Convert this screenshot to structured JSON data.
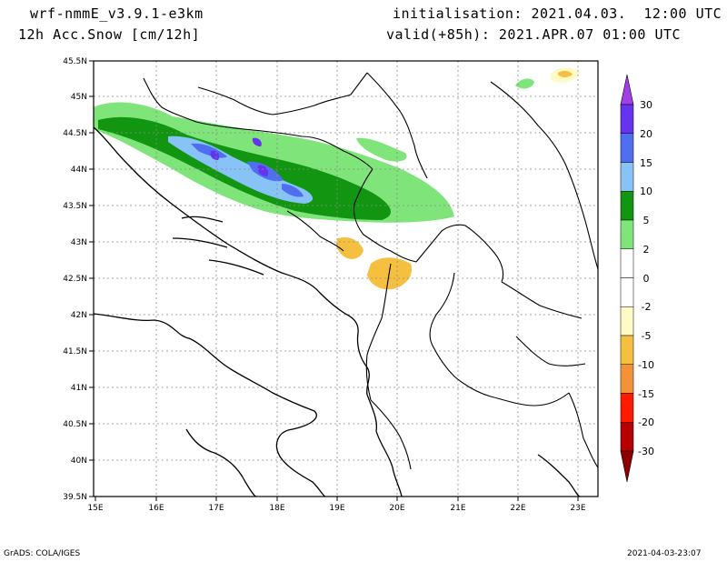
{
  "header": {
    "model": "wrf-nmmE_v3.9.1-e3km",
    "variable": "12h Acc.Snow [cm/12h]",
    "initialisation": "initialisation: 2021.04.03.  12:00 UTC",
    "valid": "valid(+85h): 2021.APR.07 01:00 UTC"
  },
  "footer": {
    "credit": "GrADS: COLA/IGES",
    "timestamp": "2021-04-03-23:07"
  },
  "map": {
    "lat_labels": [
      "45.5N",
      "45N",
      "44.5N",
      "44N",
      "43.5N",
      "43N",
      "42.5N",
      "42N",
      "41.5N",
      "41N",
      "40.5N",
      "40N",
      "39.5N"
    ],
    "lon_labels": [
      "15E",
      "16E",
      "17E",
      "18E",
      "19E",
      "20E",
      "21E",
      "22E",
      "23E"
    ]
  },
  "colorbar": {
    "labels": [
      "30",
      "20",
      "15",
      "10",
      "5",
      "2",
      "0",
      "-2",
      "-5",
      "-10",
      "-15",
      "-20",
      "-30"
    ],
    "colors": [
      "#6633ee",
      "#4f6ff0",
      "#87c3f6",
      "#129612",
      "#7fe57a",
      "#ffffff",
      "#ffffff",
      "#fffbc6",
      "#f5c040",
      "#f39339",
      "#ff1a00",
      "#b60000"
    ],
    "top_arrow": "#a23ee8",
    "bottom_arrow": "#8c0000"
  },
  "fields": {
    "snow_green_light": "#7fe57a",
    "snow_green_dark": "#129612",
    "snow_light_blue": "#87c3f6",
    "snow_blue": "#4f6ff0",
    "snow_purple": "#6633ee",
    "melt_pale": "#fffbc6",
    "melt_gold": "#f5c040"
  }
}
